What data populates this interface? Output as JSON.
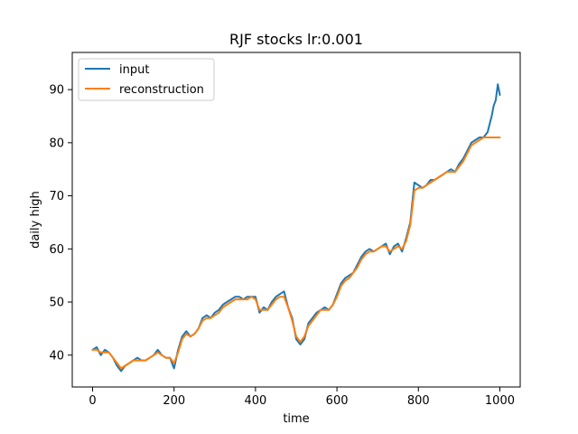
{
  "chart_data": {
    "type": "line",
    "title": "RJF stocks lr:0.001",
    "xlabel": "time",
    "ylabel": "daily high",
    "xlim": [
      -50,
      1050
    ],
    "ylim": [
      34,
      97
    ],
    "xticks": [
      0,
      200,
      400,
      600,
      800,
      1000
    ],
    "yticks": [
      40,
      50,
      60,
      70,
      80,
      90
    ],
    "legend_position": "upper-left",
    "grid": false,
    "series": [
      {
        "name": "input",
        "color": "#1f77b4",
        "x": [
          0,
          10,
          20,
          30,
          40,
          50,
          60,
          70,
          80,
          90,
          100,
          110,
          120,
          130,
          140,
          150,
          160,
          170,
          180,
          190,
          200,
          210,
          220,
          230,
          240,
          250,
          260,
          270,
          280,
          290,
          300,
          310,
          320,
          330,
          340,
          350,
          360,
          370,
          380,
          390,
          400,
          410,
          420,
          430,
          440,
          450,
          460,
          470,
          480,
          490,
          500,
          510,
          520,
          530,
          540,
          550,
          560,
          570,
          580,
          590,
          600,
          610,
          620,
          630,
          640,
          650,
          660,
          670,
          680,
          690,
          700,
          710,
          720,
          730,
          740,
          750,
          760,
          770,
          780,
          790,
          800,
          810,
          820,
          830,
          840,
          850,
          860,
          870,
          880,
          890,
          900,
          910,
          920,
          930,
          940,
          950,
          960,
          970,
          980,
          985,
          990,
          995,
          1000
        ],
        "values": [
          41,
          41.5,
          40,
          41,
          40.5,
          39.5,
          38,
          37,
          38,
          38.5,
          39,
          39.5,
          39,
          39,
          39.5,
          40,
          41,
          40,
          39.5,
          39.5,
          37.5,
          41,
          43.5,
          44.5,
          43.5,
          44,
          45,
          47,
          47.5,
          47,
          48,
          48.5,
          49.5,
          50,
          50.5,
          51,
          51,
          50.5,
          51,
          51,
          51,
          48,
          49,
          48.5,
          50,
          51,
          51.5,
          52,
          49,
          47,
          43,
          42,
          43,
          46,
          47,
          48,
          48.5,
          49,
          48.5,
          49.5,
          51.5,
          53.5,
          54.5,
          55,
          55.5,
          57,
          58.5,
          59.5,
          60,
          59.5,
          60,
          60.5,
          61,
          59,
          60.5,
          61,
          59.5,
          62,
          65,
          72.5,
          72,
          71.5,
          72,
          73,
          73,
          73.5,
          74,
          74.5,
          75,
          74.5,
          76,
          77,
          78.5,
          80,
          80.5,
          81,
          81,
          82,
          85,
          87,
          88,
          91,
          89
        ]
      },
      {
        "name": "reconstruction",
        "color": "#ff7f0e",
        "x": [
          0,
          10,
          20,
          30,
          40,
          50,
          60,
          70,
          80,
          90,
          100,
          110,
          120,
          130,
          140,
          150,
          160,
          170,
          180,
          190,
          200,
          210,
          220,
          230,
          240,
          250,
          260,
          270,
          280,
          290,
          300,
          310,
          320,
          330,
          340,
          350,
          360,
          370,
          380,
          390,
          400,
          410,
          420,
          430,
          440,
          450,
          460,
          470,
          480,
          490,
          500,
          510,
          520,
          530,
          540,
          550,
          560,
          570,
          580,
          590,
          600,
          610,
          620,
          630,
          640,
          650,
          660,
          670,
          680,
          690,
          700,
          710,
          720,
          730,
          740,
          750,
          760,
          770,
          780,
          790,
          800,
          810,
          820,
          830,
          840,
          850,
          860,
          870,
          880,
          890,
          900,
          910,
          920,
          930,
          940,
          950,
          960,
          970,
          980,
          1000
        ],
        "values": [
          41,
          41,
          40.5,
          40.5,
          40.5,
          39.5,
          38.5,
          37.5,
          38,
          38.5,
          39,
          39,
          39,
          39,
          39.5,
          40,
          40.5,
          40,
          39.5,
          39.5,
          38.5,
          40.5,
          43,
          44,
          43.5,
          44,
          45,
          46.5,
          47,
          47,
          47.5,
          48,
          49,
          49.5,
          50,
          50.5,
          50.5,
          50.5,
          50.5,
          51,
          50.5,
          48.5,
          48.5,
          48.5,
          49.5,
          50.5,
          51,
          51,
          49,
          46.5,
          43.5,
          42.5,
          43.5,
          45.5,
          46.5,
          47.5,
          48.5,
          48.5,
          48.5,
          49.5,
          51,
          53,
          54,
          54.5,
          55.5,
          56.5,
          58,
          59,
          59.5,
          59.5,
          60,
          60.5,
          60.5,
          59.5,
          60,
          60.5,
          60,
          61.5,
          64.5,
          71,
          71.5,
          71.5,
          72,
          72.5,
          73,
          73.5,
          74,
          74.5,
          74.5,
          74.5,
          75.5,
          76.5,
          78,
          79.5,
          80,
          80.5,
          81,
          81,
          81,
          81
        ]
      }
    ]
  }
}
